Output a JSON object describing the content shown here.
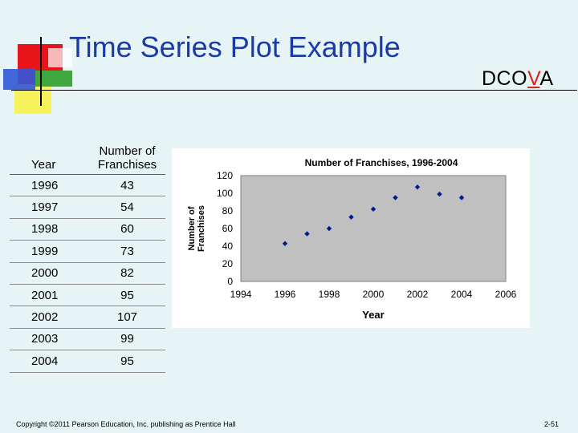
{
  "slide": {
    "title": "Time Series Plot Example",
    "dcova": {
      "prefix": "DCO",
      "highlight": "V",
      "suffix": "A"
    },
    "footer": "Copyright ©2011 Pearson Education, Inc. publishing as Prentice Hall",
    "page_number": "2-51"
  },
  "table": {
    "headers": [
      "Year",
      "Number of Franchises"
    ],
    "rows": [
      [
        "1996",
        "43"
      ],
      [
        "1997",
        "54"
      ],
      [
        "1998",
        "60"
      ],
      [
        "1999",
        "73"
      ],
      [
        "2000",
        "82"
      ],
      [
        "2001",
        "95"
      ],
      [
        "2002",
        "107"
      ],
      [
        "2003",
        "99"
      ],
      [
        "2004",
        "95"
      ]
    ]
  },
  "chart_data": {
    "type": "scatter",
    "title": "Number of Franchises, 1996-2004",
    "xlabel": "Year",
    "ylabel": "Number of Franchises",
    "xlim": [
      1994,
      2006
    ],
    "ylim": [
      0,
      120
    ],
    "xticks": [
      1994,
      1996,
      1998,
      2000,
      2002,
      2004,
      2006
    ],
    "yticks": [
      0,
      20,
      40,
      60,
      80,
      100,
      120
    ],
    "grid": false,
    "legend": "none",
    "x": [
      1996,
      1997,
      1998,
      1999,
      2000,
      2001,
      2002,
      2003,
      2004
    ],
    "y": [
      43,
      54,
      60,
      73,
      82,
      95,
      107,
      99,
      95
    ],
    "marker_color": "#001a8c",
    "plot_bg": "#c0c0c0"
  }
}
